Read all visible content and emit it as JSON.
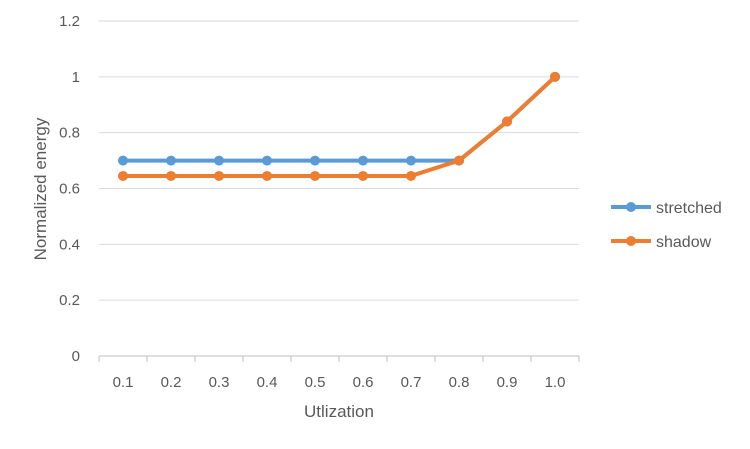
{
  "chart_data": {
    "type": "line",
    "xlabel": "Utlization",
    "ylabel": "Normalized energy",
    "categories": [
      "0.1",
      "0.2",
      "0.3",
      "0.4",
      "0.5",
      "0.6",
      "0.7",
      "0.8",
      "0.9",
      "1.0"
    ],
    "ylim": [
      0,
      1.2
    ],
    "yticks": [
      "0",
      "0.2",
      "0.4",
      "0.6",
      "0.8",
      "1",
      "1.2"
    ],
    "grid": true,
    "legend": "right",
    "series": [
      {
        "name": "stretched",
        "color": "#5B9BD5",
        "values": [
          0.7,
          0.7,
          0.7,
          0.7,
          0.7,
          0.7,
          0.7,
          0.7,
          0.84,
          1.0
        ]
      },
      {
        "name": "shadow",
        "color": "#ED7D31",
        "values": [
          0.645,
          0.645,
          0.645,
          0.645,
          0.645,
          0.645,
          0.645,
          0.7,
          0.84,
          1.0
        ]
      }
    ]
  }
}
